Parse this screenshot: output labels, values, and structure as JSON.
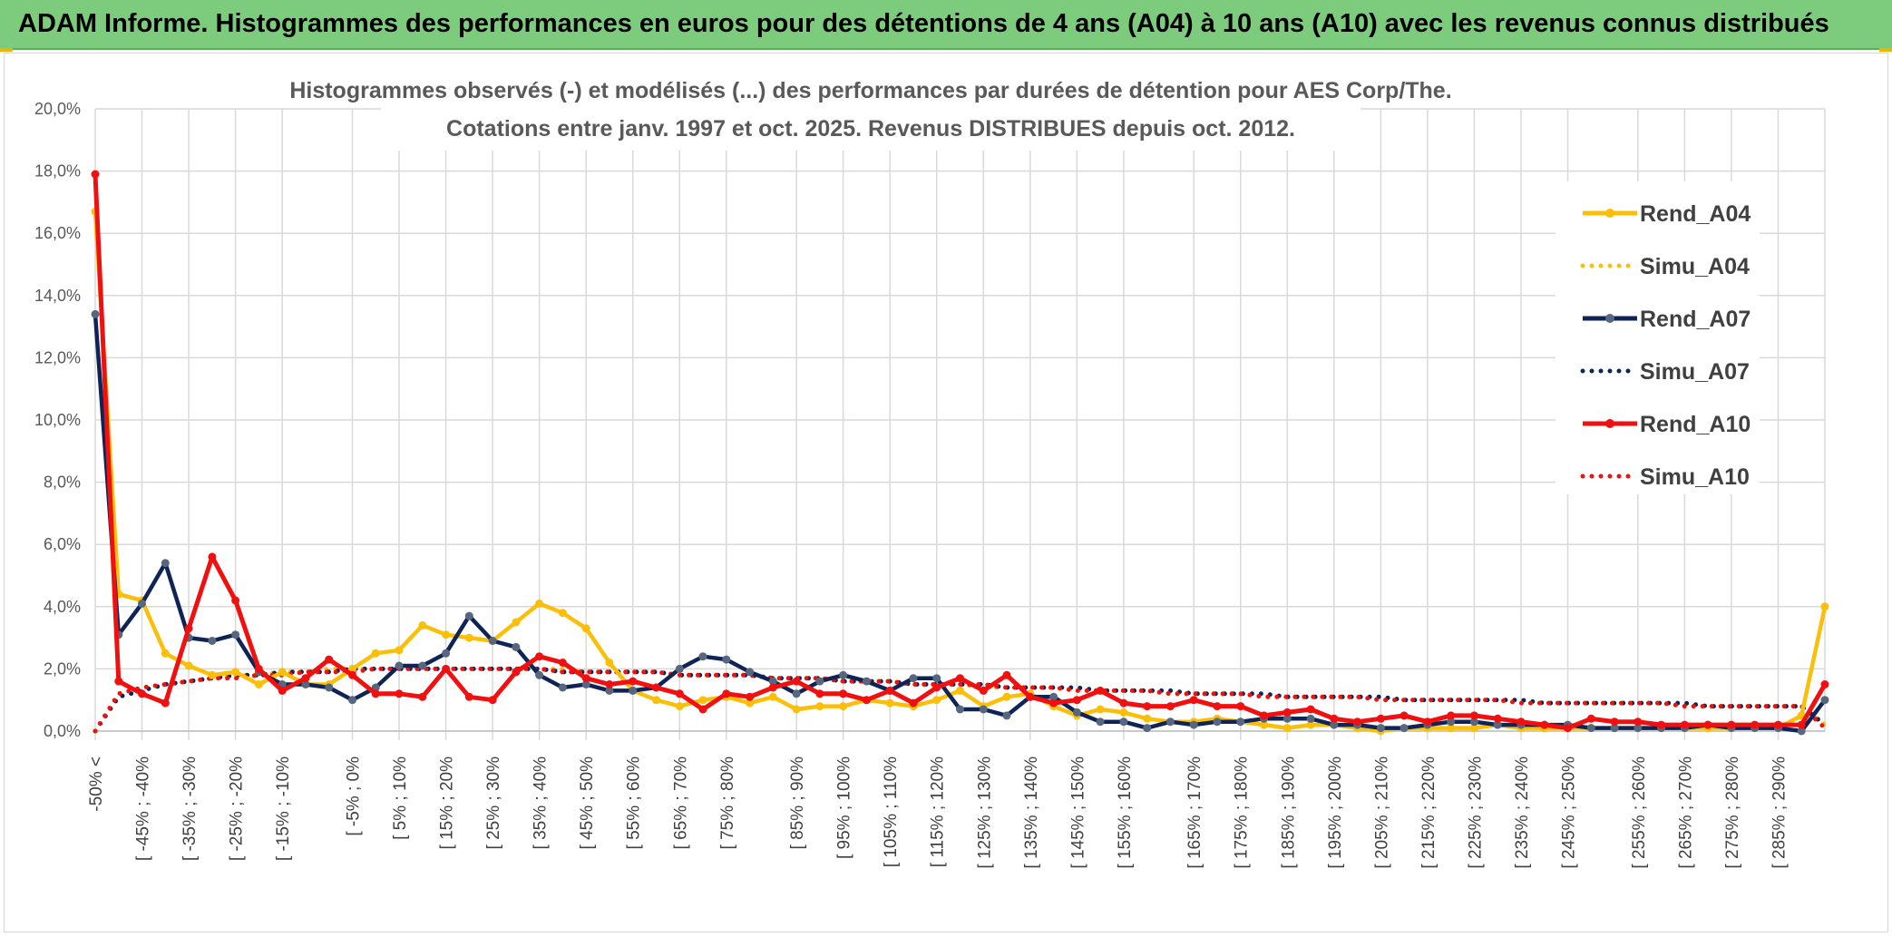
{
  "banner": {
    "title": "ADAM Informe. Histogrammes des performances en euros pour des détentions de 4 ans (A04) à 10 ans (A10) avec les revenus connus distribués"
  },
  "colors": {
    "banner": "#7dcb7d",
    "A04": "#fcbf09",
    "A07": "#0f2456",
    "A10": "#f01010",
    "grid": "#d9d9d9"
  },
  "chart_data": {
    "type": "line",
    "title": "Histogrammes observés (-) et modélisés (...) des performances par durées de détention pour AES Corp/The.",
    "subtitle": "Cotations entre janv. 1997 et oct. 2025. Revenus DISTRIBUES depuis oct. 2012.",
    "xlabel": "",
    "ylabel": "",
    "ylim": [
      0,
      20
    ],
    "y_ticks": [
      "0,0%",
      "2,0%",
      "4,0%",
      "6,0%",
      "8,0%",
      "10,0%",
      "12,0%",
      "14,0%",
      "16,0%",
      "18,0%",
      "20,0%"
    ],
    "x_tick_labels": [
      "-50% <",
      "[ -45% ; -40%",
      "[ -35% ; -30%",
      "[ -25% ; -20%",
      "[ -15% ; -10%",
      "[ -5% ; 0%",
      "[ 5% ; 10%",
      "[ 15% ; 20%",
      "[ 25% ; 30%",
      "[ 35% ; 40%",
      "[ 45% ; 50%",
      "[ 55% ; 60%",
      "[ 65% ; 70%",
      "[ 75% ; 80%",
      "[ 85% ; 90%",
      "[ 95% ; 100%",
      "[ 105% ; 110%",
      "[ 115% ; 120%",
      "[ 125% ; 130%",
      "[ 135% ; 140%",
      "[ 145% ; 150%",
      "[ 155% ; 160%",
      "[ 165% ; 170%",
      "[ 175% ; 180%",
      "[ 185% ; 190%",
      "[ 195% ; 200%",
      "[ 205% ; 210%",
      "[ 215% ; 220%",
      "[ 225% ; 230%",
      "[ 235% ; 240%",
      "[ 245% ; 250%",
      "[ 255% ; 260%",
      "[ 265% ; 270%",
      "[ 275% ; 280%",
      "[ 285% ; 290%"
    ],
    "grid": true,
    "legend_position": "right",
    "series": [
      {
        "name": "Rend_A04",
        "style": "solid",
        "color": "#fcbf09",
        "values": [
          16.7,
          4.4,
          4.2,
          2.5,
          2.1,
          1.8,
          1.9,
          1.5,
          1.9,
          1.5,
          1.5,
          2.0,
          2.5,
          2.6,
          3.4,
          3.1,
          3.0,
          2.9,
          3.5,
          4.1,
          3.8,
          3.3,
          2.2,
          1.3,
          1.0,
          0.8,
          1.0,
          1.1,
          0.9,
          1.1,
          0.7,
          0.8,
          0.8,
          1.0,
          0.9,
          0.8,
          1.0,
          1.3,
          0.8,
          1.1,
          1.2,
          0.8,
          0.5,
          0.7,
          0.6,
          0.4,
          0.3,
          0.3,
          0.4,
          0.3,
          0.2,
          0.1,
          0.2,
          0.2,
          0.1,
          0.0,
          0.1,
          0.1,
          0.1,
          0.1,
          0.2,
          0.1,
          0.1,
          0.1,
          0.1,
          0.1,
          0.1,
          0.1,
          0.1,
          0.1,
          0.1,
          0.1,
          0.1,
          0.5,
          4.0
        ]
      },
      {
        "name": "Simu_A04",
        "style": "dotted",
        "color": "#fcbf09",
        "values": [
          0.0,
          1.2,
          1.4,
          1.5,
          1.6,
          1.7,
          1.8,
          1.8,
          1.9,
          1.9,
          2.0,
          2.0,
          2.0,
          2.0,
          2.0,
          2.0,
          2.0,
          2.0,
          2.0,
          2.0,
          2.0,
          1.9,
          1.9,
          1.9,
          1.9,
          1.8,
          1.8,
          1.8,
          1.8,
          1.7,
          1.7,
          1.7,
          1.6,
          1.6,
          1.6,
          1.5,
          1.5,
          1.5,
          1.4,
          1.4,
          1.4,
          1.4,
          1.3,
          1.3,
          1.3,
          1.3,
          1.2,
          1.2,
          1.2,
          1.2,
          1.1,
          1.1,
          1.1,
          1.1,
          1.1,
          1.0,
          1.0,
          1.0,
          1.0,
          1.0,
          1.0,
          0.9,
          0.9,
          0.9,
          0.9,
          0.9,
          0.9,
          0.9,
          0.8,
          0.8,
          0.8,
          0.8,
          0.8,
          0.8,
          0.2
        ]
      },
      {
        "name": "Rend_A07",
        "style": "solid",
        "color": "#0f2456",
        "values": [
          13.4,
          3.1,
          4.1,
          5.4,
          3.0,
          2.9,
          3.1,
          1.9,
          1.5,
          1.5,
          1.4,
          1.0,
          1.4,
          2.1,
          2.1,
          2.5,
          3.7,
          2.9,
          2.7,
          1.8,
          1.4,
          1.5,
          1.3,
          1.3,
          1.4,
          2.0,
          2.4,
          2.3,
          1.9,
          1.6,
          1.2,
          1.6,
          1.8,
          1.6,
          1.3,
          1.7,
          1.7,
          0.7,
          0.7,
          0.5,
          1.1,
          1.1,
          0.6,
          0.3,
          0.3,
          0.1,
          0.3,
          0.2,
          0.3,
          0.3,
          0.4,
          0.4,
          0.4,
          0.2,
          0.2,
          0.1,
          0.1,
          0.2,
          0.3,
          0.3,
          0.2,
          0.2,
          0.2,
          0.2,
          0.1,
          0.1,
          0.1,
          0.1,
          0.1,
          0.2,
          0.1,
          0.1,
          0.1,
          0.0,
          1.0
        ]
      },
      {
        "name": "Simu_A07",
        "style": "dotted",
        "color": "#0f2456",
        "values": [
          0.0,
          1.1,
          1.3,
          1.5,
          1.6,
          1.7,
          1.8,
          1.8,
          1.9,
          1.9,
          1.9,
          2.0,
          2.0,
          2.0,
          2.0,
          2.0,
          2.0,
          2.0,
          2.0,
          2.0,
          1.9,
          1.9,
          1.9,
          1.9,
          1.9,
          1.8,
          1.8,
          1.8,
          1.8,
          1.7,
          1.7,
          1.7,
          1.6,
          1.6,
          1.6,
          1.5,
          1.5,
          1.5,
          1.5,
          1.4,
          1.4,
          1.4,
          1.4,
          1.3,
          1.3,
          1.3,
          1.3,
          1.2,
          1.2,
          1.2,
          1.2,
          1.1,
          1.1,
          1.1,
          1.1,
          1.1,
          1.0,
          1.0,
          1.0,
          1.0,
          1.0,
          1.0,
          0.9,
          0.9,
          0.9,
          0.9,
          0.9,
          0.9,
          0.9,
          0.8,
          0.8,
          0.8,
          0.8,
          0.8,
          0.2
        ]
      },
      {
        "name": "Rend_A10",
        "style": "solid",
        "color": "#f01010",
        "values": [
          17.9,
          1.6,
          1.2,
          0.9,
          3.3,
          5.6,
          4.2,
          2.0,
          1.3,
          1.7,
          2.3,
          1.8,
          1.2,
          1.2,
          1.1,
          2.0,
          1.1,
          1.0,
          1.9,
          2.4,
          2.2,
          1.7,
          1.5,
          1.6,
          1.4,
          1.2,
          0.7,
          1.2,
          1.1,
          1.4,
          1.6,
          1.2,
          1.2,
          1.0,
          1.3,
          0.9,
          1.4,
          1.7,
          1.3,
          1.8,
          1.1,
          0.9,
          1.0,
          1.3,
          0.9,
          0.8,
          0.8,
          1.0,
          0.8,
          0.8,
          0.5,
          0.6,
          0.7,
          0.4,
          0.3,
          0.4,
          0.5,
          0.3,
          0.5,
          0.5,
          0.4,
          0.3,
          0.2,
          0.1,
          0.4,
          0.3,
          0.3,
          0.2,
          0.2,
          0.2,
          0.2,
          0.2,
          0.2,
          0.2,
          1.5
        ]
      },
      {
        "name": "Simu_A10",
        "style": "dotted",
        "color": "#f01010",
        "values": [
          0.0,
          1.2,
          1.4,
          1.5,
          1.6,
          1.7,
          1.7,
          1.8,
          1.8,
          1.9,
          1.9,
          1.9,
          2.0,
          2.0,
          2.0,
          2.0,
          2.0,
          2.0,
          2.0,
          2.0,
          1.9,
          1.9,
          1.9,
          1.9,
          1.9,
          1.8,
          1.8,
          1.8,
          1.8,
          1.7,
          1.7,
          1.7,
          1.6,
          1.6,
          1.6,
          1.5,
          1.5,
          1.5,
          1.5,
          1.4,
          1.4,
          1.4,
          1.3,
          1.3,
          1.3,
          1.3,
          1.2,
          1.2,
          1.2,
          1.2,
          1.1,
          1.1,
          1.1,
          1.1,
          1.1,
          1.0,
          1.0,
          1.0,
          1.0,
          1.0,
          1.0,
          0.9,
          0.9,
          0.9,
          0.9,
          0.9,
          0.9,
          0.9,
          0.8,
          0.8,
          0.8,
          0.8,
          0.8,
          0.8,
          0.1
        ]
      }
    ]
  }
}
